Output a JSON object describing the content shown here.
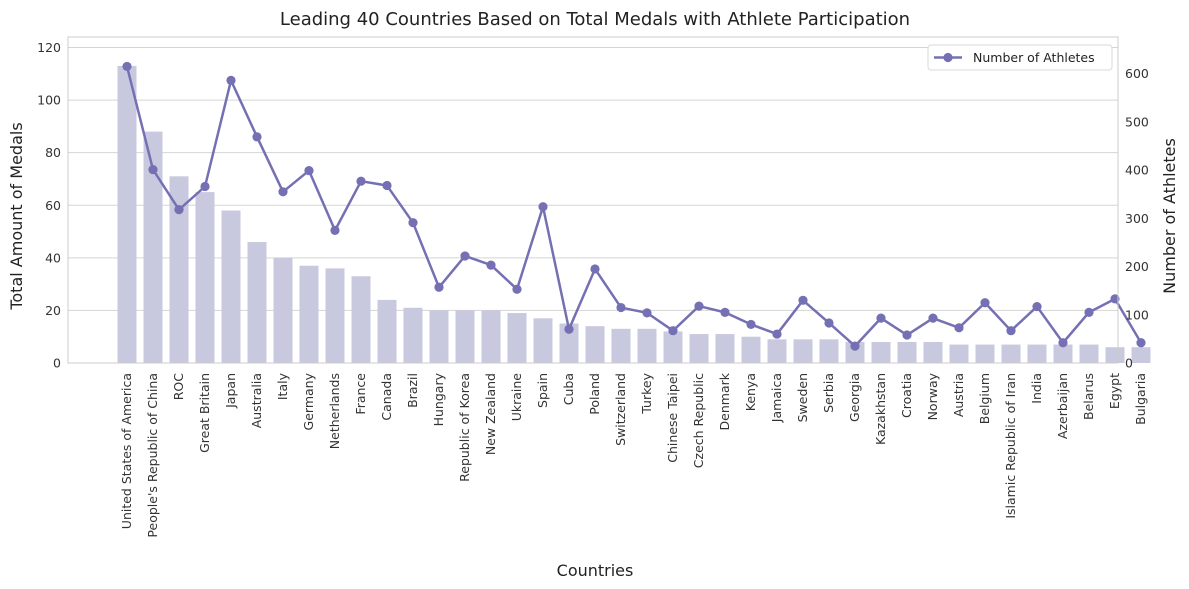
{
  "chart_data": {
    "type": "bar",
    "title": "Leading 40 Countries Based on Total Medals with Athlete Participation",
    "xlabel": "Countries",
    "ylabel": "Total Amount of Medals",
    "y2label": "Number of Athletes",
    "ylim": [
      0,
      124
    ],
    "y2lim": [
      0,
      676
    ],
    "yticks": [
      0,
      20,
      40,
      60,
      80,
      100,
      120
    ],
    "y2ticks": [
      0,
      100,
      200,
      300,
      400,
      500,
      600
    ],
    "grid": true,
    "legend_position": "top-right",
    "categories": [
      "United States of America",
      "People's Republic of China",
      "ROC",
      "Great Britain",
      "Japan",
      "Australia",
      "Italy",
      "Germany",
      "Netherlands",
      "France",
      "Canada",
      "Brazil",
      "Hungary",
      "Republic of Korea",
      "New Zealand",
      "Ukraine",
      "Spain",
      "Cuba",
      "Poland",
      "Switzerland",
      "Turkey",
      "Chinese Taipei",
      "Czech Republic",
      "Denmark",
      "Kenya",
      "Jamaica",
      "Sweden",
      "Serbia",
      "Georgia",
      "Kazakhstan",
      "Croatia",
      "Norway",
      "Austria",
      "Belgium",
      "Islamic Republic of Iran",
      "India",
      "Azerbaijan",
      "Belarus",
      "Egypt",
      "Bulgaria"
    ],
    "series": [
      {
        "kind": "bar",
        "axis": "left",
        "values": [
          113,
          88,
          71,
          65,
          58,
          46,
          40,
          37,
          36,
          33,
          24,
          21,
          20,
          20,
          20,
          19,
          17,
          15,
          14,
          13,
          13,
          12,
          11,
          11,
          10,
          9,
          9,
          9,
          8,
          8,
          8,
          8,
          7,
          7,
          7,
          7,
          7,
          7,
          6,
          6
        ]
      },
      {
        "kind": "line",
        "axis": "right",
        "name": "Number of Athletes",
        "values": [
          615,
          401,
          318,
          366,
          586,
          469,
          355,
          399,
          275,
          377,
          368,
          291,
          157,
          222,
          203,
          153,
          324,
          70,
          195,
          115,
          104,
          67,
          118,
          105,
          80,
          60,
          130,
          83,
          35,
          93,
          58,
          93,
          73,
          125,
          67,
          117,
          42,
          105,
          133,
          42
        ]
      }
    ],
    "colors": {
      "bar": "#c8c8de",
      "line": "#7570b3",
      "grid": "#d5d5d5",
      "spine": "#cccccc",
      "text": "#222222"
    }
  }
}
